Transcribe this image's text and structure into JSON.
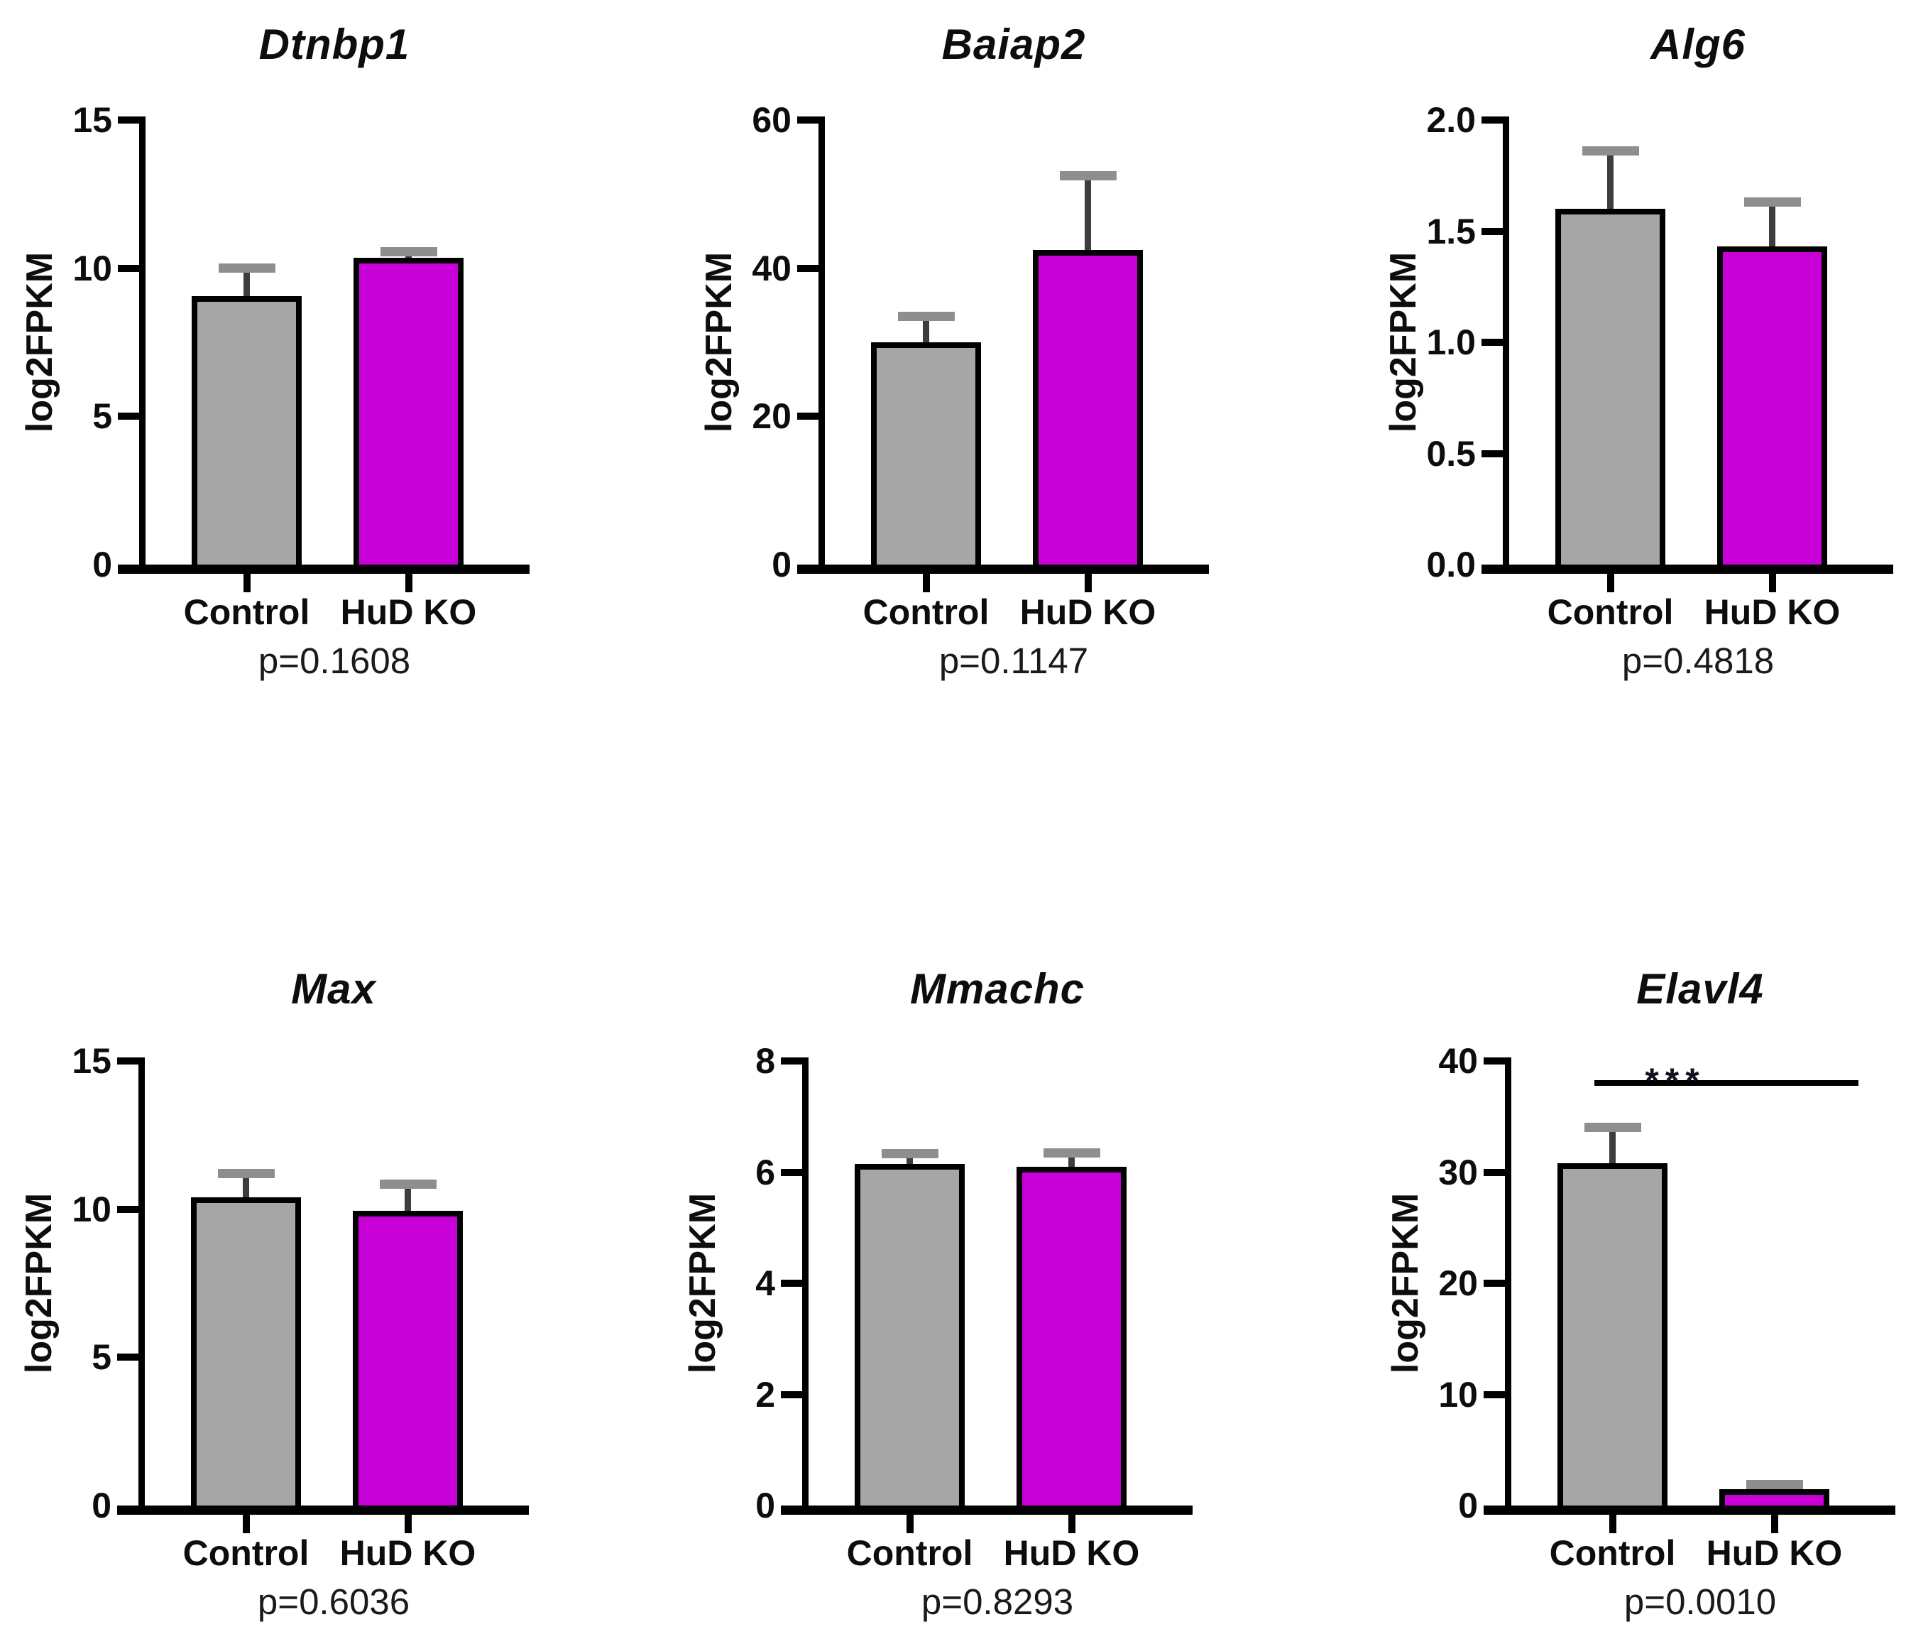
{
  "figure": {
    "description": "Bar charts of gene expression (log2FPKM) in Control vs HuD KO",
    "conditions": [
      "Control",
      "HuD KO"
    ]
  },
  "colors": {
    "control_fill": "#a6a6a6",
    "hud_ko_fill": "#c800d8",
    "bar_border": "#000000",
    "axis": "#000000",
    "error_whisker": "#3d3d3d",
    "error_cap": "#8e8e8e",
    "significance_text": "#10121f",
    "background": "#ffffff"
  },
  "chart_data": [
    {
      "type": "bar",
      "title": "Dtnbp1",
      "ylabel": "log2FPKM",
      "categories": [
        "Control",
        "HuD KO"
      ],
      "values": [
        9.05,
        10.35
      ],
      "errors_up": [
        0.95,
        0.2
      ],
      "ylim": [
        0,
        15
      ],
      "ytick_values": [
        0,
        5,
        10,
        15
      ],
      "yticks": [
        "0",
        "5",
        "10",
        "15"
      ],
      "grid": "off",
      "legend": "none",
      "p_label": "p=0.1608",
      "significance": null
    },
    {
      "type": "bar",
      "title": "Baiap2",
      "ylabel": "log2FPKM",
      "categories": [
        "Control",
        "HuD KO"
      ],
      "values": [
        30,
        42.5
      ],
      "errors_up": [
        3.5,
        10
      ],
      "ylim": [
        0,
        60
      ],
      "ytick_values": [
        0,
        20,
        40,
        60
      ],
      "yticks": [
        "0",
        "20",
        "40",
        "60"
      ],
      "grid": "off",
      "legend": "none",
      "p_label": "p=0.1147",
      "significance": null
    },
    {
      "type": "bar",
      "title": "Alg6",
      "ylabel": "log2FPKM",
      "categories": [
        "Control",
        "HuD KO"
      ],
      "values": [
        1.6,
        1.43
      ],
      "errors_up": [
        0.26,
        0.2
      ],
      "ylim": [
        0,
        2.0
      ],
      "ytick_values": [
        0,
        0.5,
        1.0,
        1.5,
        2.0
      ],
      "yticks": [
        "0.0",
        "0.5",
        "1.0",
        "1.5",
        "2.0"
      ],
      "grid": "off",
      "legend": "none",
      "p_label": "p=0.4818",
      "significance": null
    },
    {
      "type": "bar",
      "title": "Max",
      "ylabel": "log2FPKM",
      "categories": [
        "Control",
        "HuD KO"
      ],
      "values": [
        10.4,
        9.95
      ],
      "errors_up": [
        0.8,
        0.9
      ],
      "ylim": [
        0,
        15
      ],
      "ytick_values": [
        0,
        5,
        10,
        15
      ],
      "yticks": [
        "0",
        "5",
        "10",
        "15"
      ],
      "grid": "off",
      "legend": "none",
      "p_label": "p=0.6036",
      "significance": null
    },
    {
      "type": "bar",
      "title": "Mmachc",
      "ylabel": "log2FPKM",
      "categories": [
        "Control",
        "HuD KO"
      ],
      "values": [
        6.15,
        6.1
      ],
      "errors_up": [
        0.18,
        0.25
      ],
      "ylim": [
        0,
        8
      ],
      "ytick_values": [
        0,
        2,
        4,
        6,
        8
      ],
      "yticks": [
        "0",
        "2",
        "4",
        "6",
        "8"
      ],
      "grid": "off",
      "legend": "none",
      "p_label": "p=0.8293",
      "significance": null
    },
    {
      "type": "bar",
      "title": "Elavl4",
      "ylabel": "log2FPKM",
      "categories": [
        "Control",
        "HuD KO"
      ],
      "values": [
        30.8,
        1.5
      ],
      "errors_up": [
        3.2,
        0.4
      ],
      "ylim": [
        0,
        40
      ],
      "ytick_values": [
        0,
        10,
        20,
        30,
        40
      ],
      "yticks": [
        "0",
        "10",
        "20",
        "30",
        "40"
      ],
      "grid": "off",
      "legend": "none",
      "p_label": "p=0.0010",
      "significance": {
        "label": "***"
      }
    }
  ]
}
